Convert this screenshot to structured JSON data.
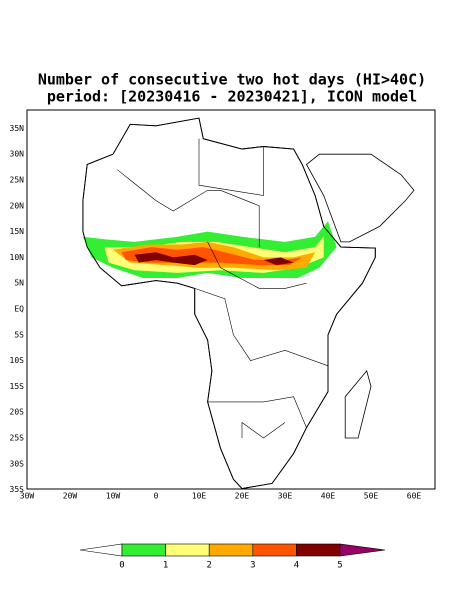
{
  "map": {
    "title": "Number of consecutive two hot days (HI>40C)",
    "subtitle": "period: [20230416 - 20230421], ICON model",
    "lat_labels": [
      "35N",
      "30N",
      "25N",
      "20N",
      "15N",
      "10N",
      "5N",
      "EQ",
      "5S",
      "10S",
      "15S",
      "20S",
      "25S",
      "30S",
      "35S"
    ],
    "lon_labels": [
      "30W",
      "20W",
      "10W",
      "0",
      "10E",
      "20E",
      "30E",
      "40E",
      "50E",
      "60E"
    ],
    "colorbar": {
      "labels": [
        0,
        1,
        2,
        3,
        4,
        5
      ],
      "colors": [
        "#ffffff",
        "#33ee33",
        "#ffff77",
        "#ffaa00",
        "#ff5500",
        "#800000",
        "#990066"
      ]
    }
  }
}
